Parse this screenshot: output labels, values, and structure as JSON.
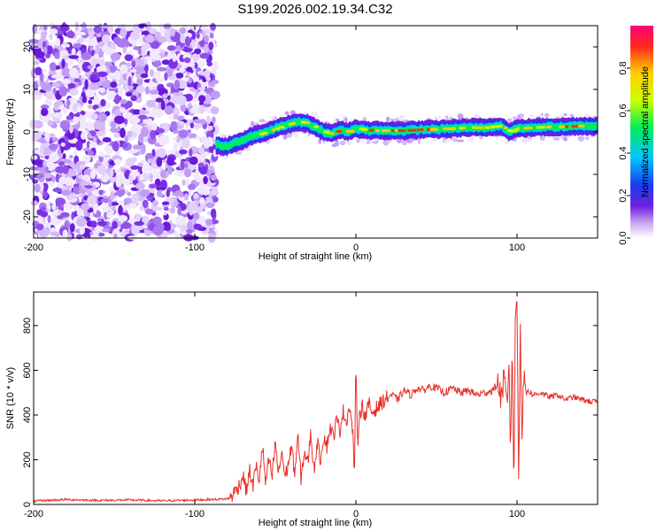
{
  "chart_data": [
    {
      "type": "heatmap",
      "title": "S199.2026.002.19.34.C32",
      "xlabel": "Height of straight line (km)",
      "ylabel": "Frequency (Hz)",
      "xlim": [
        -200,
        150
      ],
      "ylim": [
        -25,
        25
      ],
      "x_ticks": [
        -200,
        -100,
        0,
        100
      ],
      "y_ticks": [
        -20,
        -10,
        0,
        10,
        20
      ],
      "noise_region_x": [
        -200,
        -87
      ],
      "signal_start_x": -87,
      "signal_track": {
        "x": [
          -87,
          -80,
          -75,
          -70,
          -65,
          -60,
          -55,
          -50,
          -45,
          -40,
          -35,
          -30,
          -25,
          -20,
          -15,
          -10,
          -5,
          0,
          5,
          10,
          20,
          30,
          40,
          50,
          60,
          70,
          80,
          85,
          90,
          95,
          100,
          110,
          120,
          130,
          140,
          150
        ],
        "freq": [
          -3,
          -3.5,
          -2.5,
          -2,
          -1,
          -0.5,
          0,
          0.8,
          1.5,
          2,
          2.3,
          2,
          1,
          0,
          -0.5,
          0.5,
          0,
          0.8,
          0.5,
          0.3,
          0.3,
          0.3,
          0.5,
          0.6,
          0.8,
          1,
          1,
          1.2,
          1.5,
          0,
          0.8,
          1,
          1.2,
          1.2,
          1.4,
          1.4
        ]
      },
      "colorbar": {
        "label": "Normalized spectral amplitude",
        "range": [
          0,
          1
        ],
        "ticks": [
          0.0,
          0.2,
          0.4,
          0.6,
          0.8
        ],
        "tick_labels": [
          "0.0",
          "0.2",
          "0.4",
          "0.6",
          "0.8"
        ]
      }
    },
    {
      "type": "line",
      "xlabel": "Height of straight line (km)",
      "ylabel": "SNR (10 * v/v)",
      "xlim": [
        -200,
        150
      ],
      "ylim": [
        0,
        950
      ],
      "x_ticks": [
        -200,
        -100,
        0,
        100
      ],
      "y_ticks": [
        0,
        200,
        400,
        600,
        800
      ],
      "line_color": "#e8302a",
      "series": [
        {
          "name": "SNR",
          "x": [
            -200,
            -180,
            -160,
            -140,
            -120,
            -100,
            -90,
            -80,
            -78,
            -75,
            -72,
            -70,
            -68,
            -66,
            -64,
            -62,
            -60,
            -58,
            -56,
            -54,
            -52,
            -50,
            -48,
            -46,
            -44,
            -42,
            -40,
            -38,
            -36,
            -34,
            -32,
            -30,
            -28,
            -26,
            -24,
            -22,
            -20,
            -18,
            -16,
            -14,
            -12,
            -10,
            -8,
            -6,
            -4,
            -2,
            -1,
            0,
            1,
            2,
            4,
            6,
            8,
            10,
            14,
            18,
            22,
            26,
            30,
            34,
            38,
            42,
            46,
            50,
            55,
            60,
            65,
            70,
            75,
            80,
            85,
            88,
            90,
            92,
            94,
            95,
            96,
            97,
            98,
            99,
            100,
            101,
            102,
            103,
            104,
            105,
            110,
            115,
            120,
            125,
            130,
            135,
            140,
            145,
            150
          ],
          "values": [
            15,
            22,
            18,
            20,
            16,
            20,
            22,
            25,
            30,
            60,
            90,
            130,
            60,
            150,
            80,
            170,
            110,
            260,
            90,
            200,
            120,
            280,
            130,
            240,
            120,
            180,
            260,
            140,
            300,
            110,
            240,
            180,
            320,
            150,
            280,
            200,
            310,
            260,
            350,
            300,
            380,
            330,
            420,
            370,
            440,
            330,
            120,
            620,
            260,
            400,
            440,
            390,
            450,
            410,
            440,
            470,
            490,
            470,
            510,
            490,
            520,
            510,
            530,
            520,
            500,
            520,
            500,
            510,
            490,
            500,
            510,
            540,
            480,
            560,
            420,
            680,
            200,
            760,
            60,
            860,
            940,
            80,
            860,
            300,
            560,
            520,
            490,
            500,
            480,
            490,
            470,
            480,
            470,
            460,
            460
          ]
        }
      ]
    }
  ]
}
